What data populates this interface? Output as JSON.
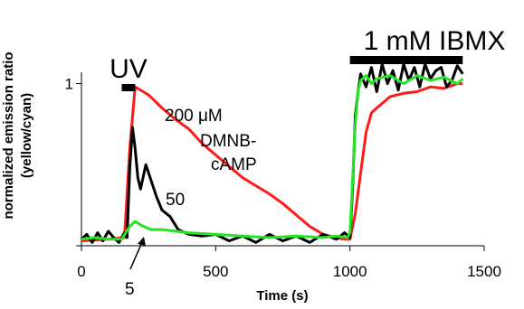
{
  "chart_data": {
    "type": "line",
    "xlabel": "Time (s)",
    "ylabel": "normalized emission ratio",
    "ylabel2": "(yellow/cyan)",
    "xlim": [
      0,
      1500
    ],
    "ylim": [
      0,
      1.07
    ],
    "x_ticks": [
      0,
      500,
      1000,
      1500
    ],
    "x_tick_labels": [
      "0",
      "500",
      "1000",
      "1500"
    ],
    "y_ticks": [
      0,
      1
    ],
    "y_tick_labels": [
      "",
      "1"
    ],
    "grid": false,
    "annotations": {
      "uv_label": "UV",
      "uv_bar": [
        150,
        200
      ],
      "ibmx_label": "1 mM IBMX",
      "ibmx_bar": [
        1000,
        1420
      ],
      "red_label_line1": "200 μM",
      "red_label_line2": "DMNB-",
      "red_label_line3": "cAMP",
      "black_label": "50",
      "green_label": "5"
    },
    "series": [
      {
        "label": "200 μM DMNB-cAMP",
        "color": "#ff1a1a",
        "x": [
          0,
          100,
          160,
          180,
          200,
          250,
          300,
          350,
          400,
          450,
          500,
          550,
          600,
          650,
          700,
          750,
          800,
          850,
          900,
          950,
          980,
          1000,
          1020,
          1040,
          1060,
          1080,
          1100,
          1150,
          1200,
          1250,
          1300,
          1350,
          1400,
          1420
        ],
        "y": [
          0.03,
          0.04,
          0.05,
          0.6,
          0.98,
          0.93,
          0.85,
          0.78,
          0.72,
          0.63,
          0.56,
          0.49,
          0.42,
          0.37,
          0.32,
          0.26,
          0.19,
          0.12,
          0.07,
          0.05,
          0.04,
          0.04,
          0.2,
          0.45,
          0.7,
          0.82,
          0.85,
          0.92,
          0.94,
          0.95,
          0.98,
          0.97,
          1.0,
          1.0
        ]
      },
      {
        "label": "50",
        "color": "#000000",
        "x": [
          0,
          20,
          40,
          60,
          80,
          100,
          120,
          140,
          160,
          170,
          180,
          190,
          200,
          210,
          220,
          240,
          260,
          280,
          300,
          330,
          360,
          400,
          450,
          500,
          550,
          600,
          650,
          700,
          750,
          800,
          850,
          900,
          950,
          980,
          1000,
          1010,
          1020,
          1030,
          1040,
          1060,
          1080,
          1100,
          1120,
          1140,
          1160,
          1180,
          1200,
          1220,
          1240,
          1260,
          1280,
          1300,
          1320,
          1340,
          1360,
          1380,
          1400,
          1420
        ],
        "y": [
          0.04,
          0.07,
          0.02,
          0.08,
          0.03,
          0.09,
          0.05,
          0.02,
          0.08,
          0.05,
          0.48,
          0.73,
          0.6,
          0.42,
          0.35,
          0.5,
          0.4,
          0.3,
          0.22,
          0.18,
          0.1,
          0.07,
          0.06,
          0.07,
          0.03,
          0.06,
          0.02,
          0.07,
          0.03,
          0.06,
          0.02,
          0.07,
          0.04,
          0.08,
          0.05,
          0.35,
          0.8,
          0.95,
          1.06,
          0.98,
          1.1,
          0.95,
          1.12,
          1.0,
          1.08,
          0.96,
          1.12,
          1.02,
          1.1,
          0.98,
          1.12,
          1.03,
          1.08,
          1.1,
          0.98,
          1.02,
          1.11,
          1.06
        ]
      },
      {
        "label": "5",
        "color": "#22e622",
        "x": [
          0,
          50,
          100,
          150,
          180,
          200,
          230,
          260,
          300,
          400,
          500,
          600,
          700,
          800,
          900,
          950,
          990,
          1000,
          1010,
          1020,
          1030,
          1040,
          1060,
          1080,
          1100,
          1150,
          1200,
          1250,
          1300,
          1350,
          1400,
          1420
        ],
        "y": [
          0.04,
          0.05,
          0.04,
          0.04,
          0.12,
          0.15,
          0.12,
          0.1,
          0.1,
          0.08,
          0.07,
          0.06,
          0.05,
          0.06,
          0.05,
          0.06,
          0.05,
          0.08,
          0.4,
          0.75,
          0.95,
          1.02,
          1.05,
          1.0,
          1.03,
          1.05,
          1.0,
          1.05,
          1.02,
          1.04,
          1.0,
          1.03
        ]
      }
    ]
  }
}
